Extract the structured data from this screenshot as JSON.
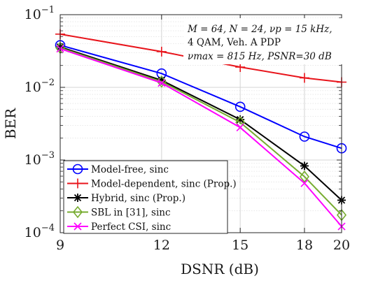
{
  "chart_data": {
    "type": "line",
    "xlabel": "DSNR (dB)",
    "ylabel": "BER",
    "x": [
      9,
      12,
      15,
      18,
      20
    ],
    "xticks": [
      "9",
      "12",
      "15",
      "18",
      "20"
    ],
    "xlim": [
      9,
      20
    ],
    "ylim": [
      0.0001,
      0.1
    ],
    "yscale": "log",
    "yticks": [
      {
        "value": 0.1,
        "label": "10",
        "exp": "−1"
      },
      {
        "value": 0.01,
        "label": "10",
        "exp": "−2"
      },
      {
        "value": 0.001,
        "label": "10",
        "exp": "−3"
      },
      {
        "value": 0.0001,
        "label": "10",
        "exp": "−4"
      }
    ],
    "grid": true,
    "legend_position": "bottom-left",
    "annotation": [
      "M = 64, N = 24, νp = 15 kHz,",
      "4 QAM, Veh. A PDP",
      "νmax = 815 Hz, PSNR=30 dB"
    ],
    "series": [
      {
        "name": "Model-free, sinc",
        "color": "#0000ff",
        "marker": "circle",
        "values": [
          0.038,
          0.0155,
          0.0054,
          0.0021,
          0.00145
        ]
      },
      {
        "name": "Model-dependent, sinc (Prop.)",
        "color": "#e8141b",
        "marker": "plus",
        "values": [
          0.054,
          0.031,
          0.019,
          0.0135,
          0.0118
        ]
      },
      {
        "name": "Hybrid, sinc (Prop.)",
        "color": "#000000",
        "marker": "star",
        "values": [
          0.036,
          0.0125,
          0.0036,
          0.00083,
          0.00028
        ]
      },
      {
        "name": "SBL in [31], sinc",
        "color": "#77ac30",
        "marker": "diamond",
        "values": [
          0.035,
          0.012,
          0.0033,
          0.00059,
          0.000175
        ]
      },
      {
        "name": "Perfect CSI, sinc",
        "color": "#ff00ff",
        "marker": "cross",
        "values": [
          0.034,
          0.0115,
          0.0028,
          0.00048,
          0.000122
        ]
      }
    ]
  }
}
